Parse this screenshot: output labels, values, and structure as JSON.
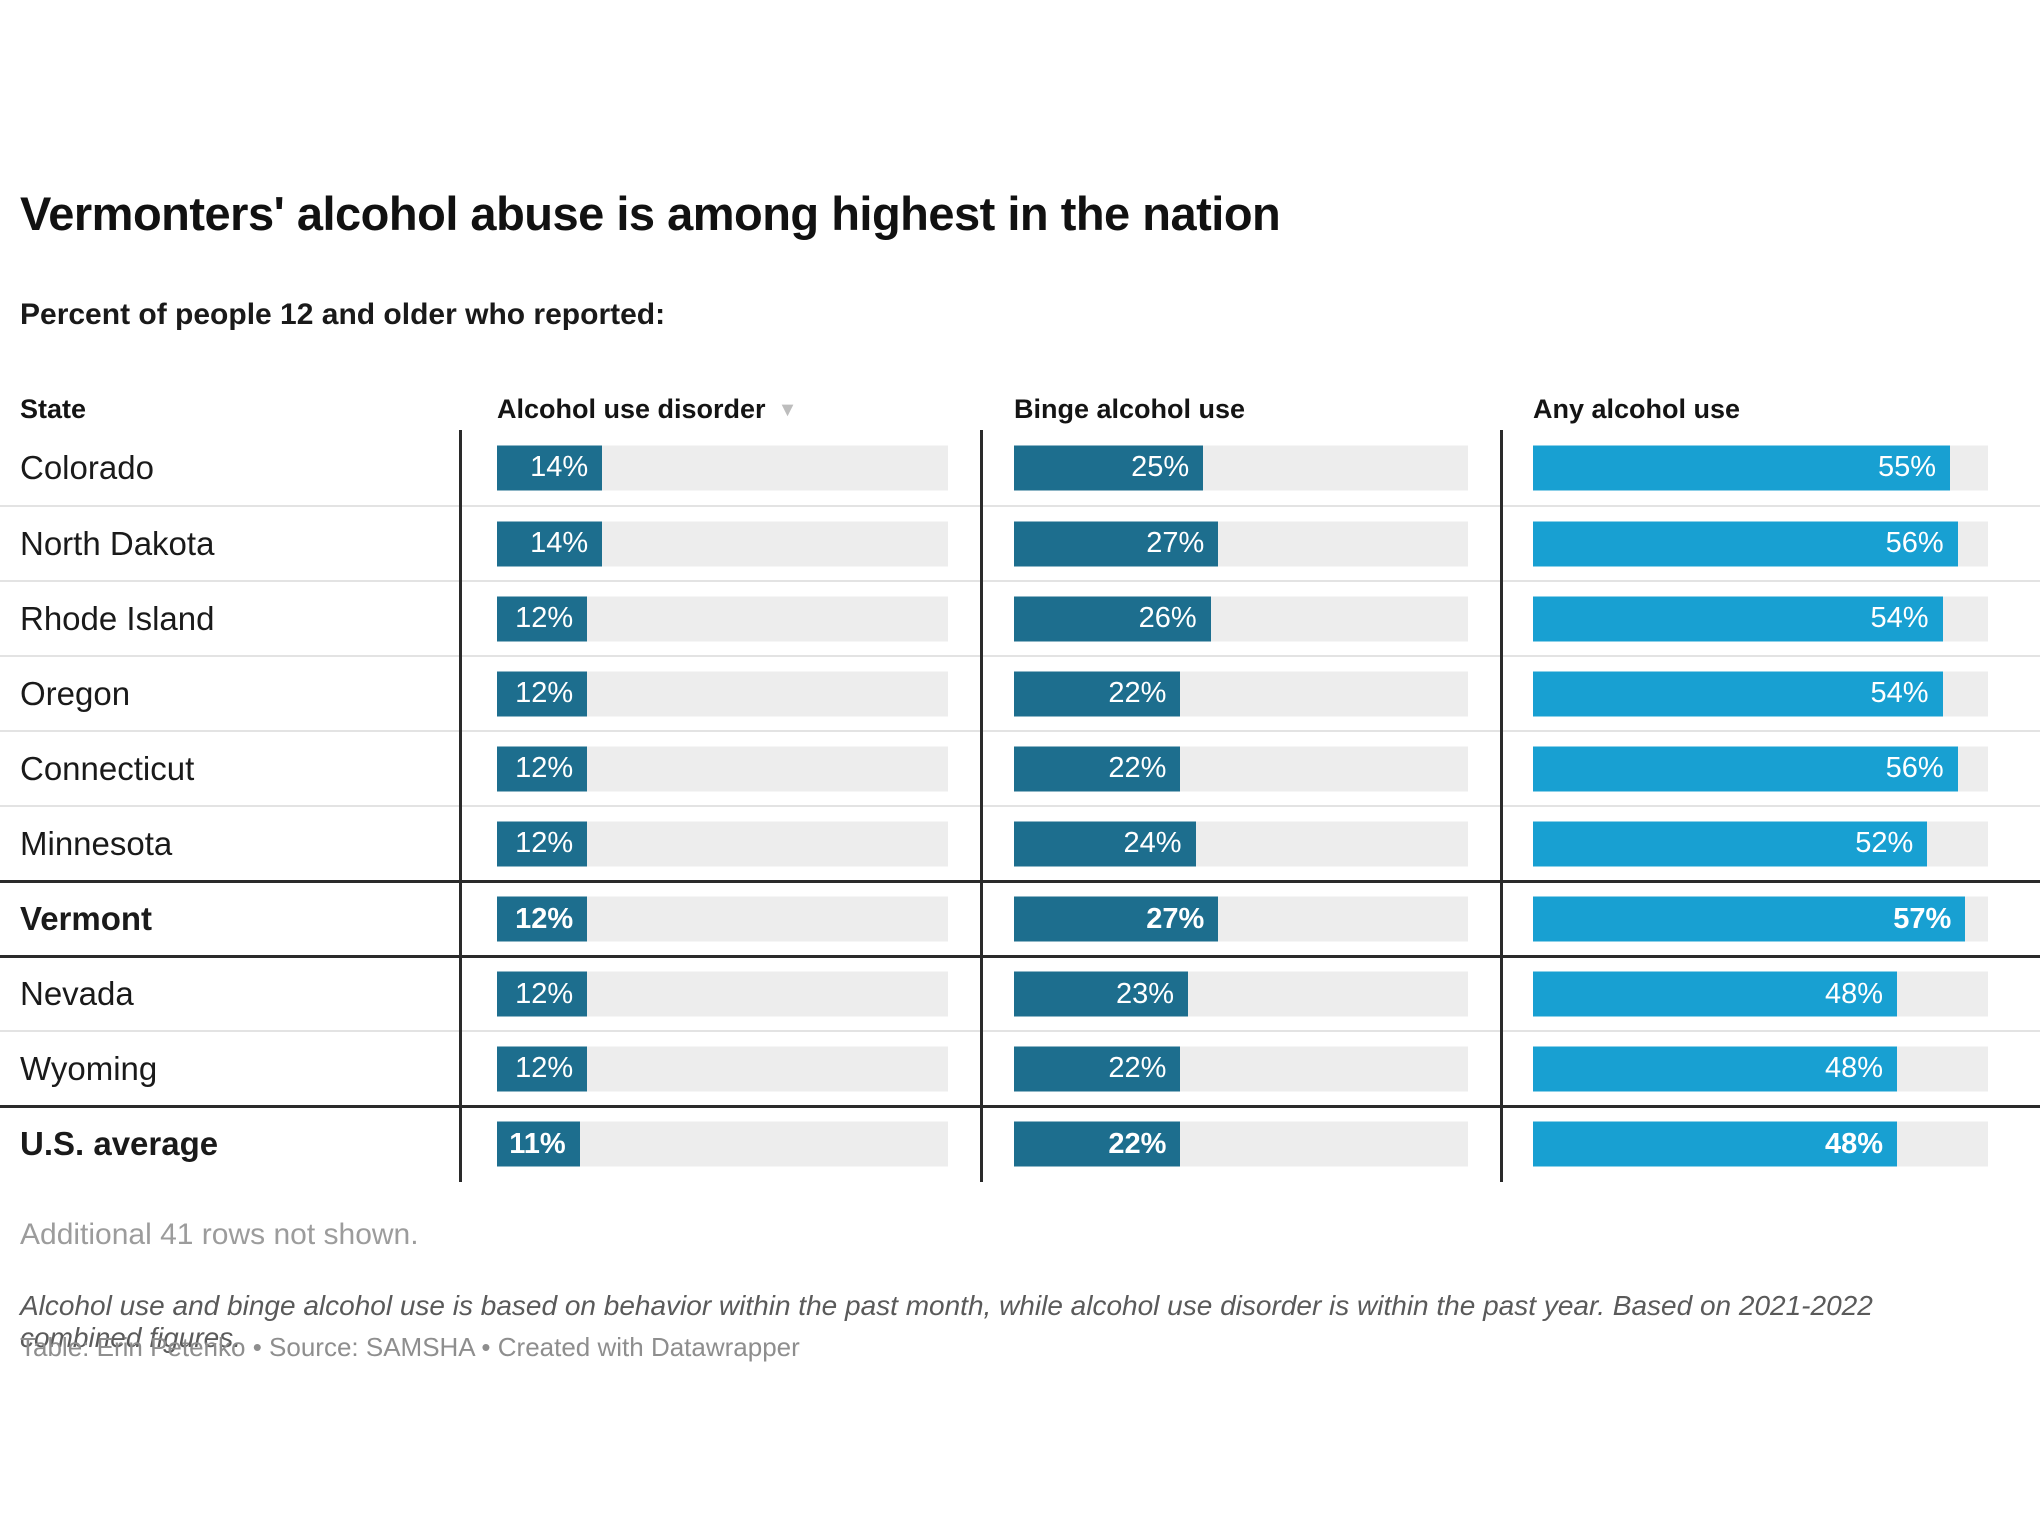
{
  "header": {
    "title": "Vermonters' alcohol abuse is among highest in the nation",
    "subtitle": "Percent of people 12 and older who reported:"
  },
  "table": {
    "columns": [
      {
        "label": "State"
      },
      {
        "label": "Alcohol use disorder",
        "sorted": "descending",
        "sort_icon": "▼"
      },
      {
        "label": "Binge alcohol use"
      },
      {
        "label": "Any alcohol use"
      }
    ]
  },
  "chart_data": {
    "type": "bar",
    "unit": "%",
    "scale_max": 60,
    "series": [
      "Alcohol use disorder",
      "Binge alcohol use",
      "Any alcohol use"
    ],
    "rows": [
      {
        "state": "Colorado",
        "values": [
          14,
          25,
          55
        ],
        "bold": false
      },
      {
        "state": "North Dakota",
        "values": [
          14,
          27,
          56
        ],
        "bold": false
      },
      {
        "state": "Rhode Island",
        "values": [
          12,
          26,
          54
        ],
        "bold": false
      },
      {
        "state": "Oregon",
        "values": [
          12,
          22,
          54
        ],
        "bold": false
      },
      {
        "state": "Connecticut",
        "values": [
          12,
          22,
          56
        ],
        "bold": false
      },
      {
        "state": "Minnesota",
        "values": [
          12,
          24,
          52
        ],
        "bold": false
      },
      {
        "state": "Vermont",
        "values": [
          12,
          27,
          57
        ],
        "bold": true
      },
      {
        "state": "Nevada",
        "values": [
          12,
          23,
          48
        ],
        "bold": false
      },
      {
        "state": "Wyoming",
        "values": [
          12,
          22,
          48
        ],
        "bold": false
      },
      {
        "state": "U.S. average",
        "values": [
          11,
          22,
          48
        ],
        "bold": true
      }
    ],
    "colors": {
      "dark": "#1d6e8e",
      "light": "#18a0d2",
      "track": "#ededed"
    },
    "legend_position": "none",
    "grid": false
  },
  "footer": {
    "additional": "Additional 41 rows not shown.",
    "note": "Alcohol use and binge alcohol use is based on behavior within the past month, while alcohol use disorder is within the past year. Based on 2021-2022 combined figures.",
    "attribution": "Table: Erin Petenko • Source: SAMSHA • Created with Datawrapper"
  }
}
